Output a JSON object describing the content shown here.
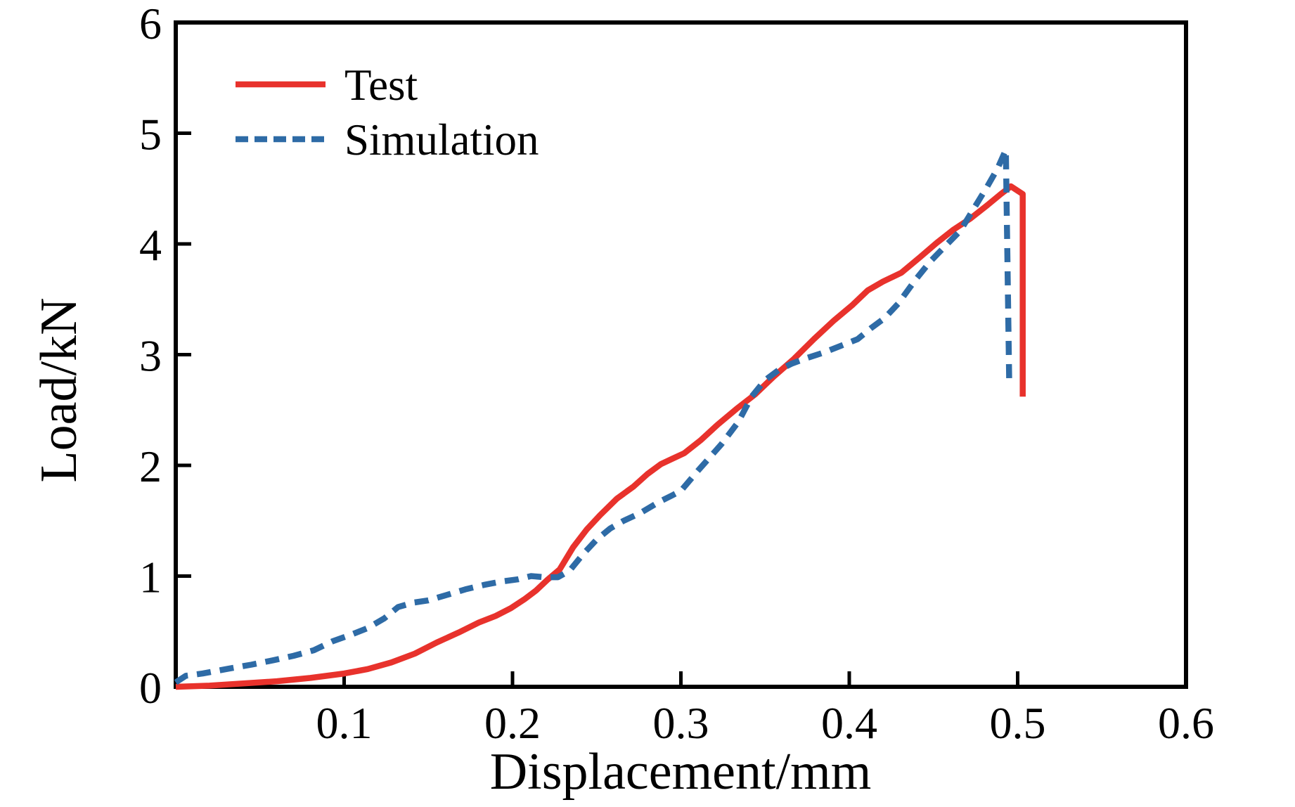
{
  "chart_data": {
    "type": "line",
    "title": "",
    "xlabel": "Displacement/mm",
    "ylabel": "Load/kN",
    "xlim": [
      0,
      0.6
    ],
    "ylim": [
      0,
      6
    ],
    "grid": false,
    "background_color": "#ffffff",
    "axis_color": "#000000",
    "xticks": {
      "values": [
        0.1,
        0.2,
        0.3,
        0.4,
        0.5,
        0.6
      ],
      "labels": [
        "0.1",
        "0.2",
        "0.3",
        "0.4",
        "0.5",
        "0.6"
      ]
    },
    "yticks": {
      "values": [
        0,
        1,
        2,
        3,
        4,
        5,
        6
      ],
      "labels": [
        "0",
        "1",
        "2",
        "3",
        "4",
        "5",
        "6"
      ]
    },
    "legend": {
      "position": "upper-left-inside"
    },
    "series": [
      {
        "name": "Test",
        "color": "#e8322c",
        "line_style": "solid",
        "points": [
          [
            0.0,
            0.0
          ],
          [
            0.02,
            0.01
          ],
          [
            0.04,
            0.03
          ],
          [
            0.06,
            0.05
          ],
          [
            0.08,
            0.08
          ],
          [
            0.1,
            0.12
          ],
          [
            0.114,
            0.16
          ],
          [
            0.128,
            0.22
          ],
          [
            0.142,
            0.3
          ],
          [
            0.155,
            0.4
          ],
          [
            0.168,
            0.49
          ],
          [
            0.18,
            0.58
          ],
          [
            0.19,
            0.64
          ],
          [
            0.199,
            0.71
          ],
          [
            0.207,
            0.79
          ],
          [
            0.214,
            0.87
          ],
          [
            0.221,
            0.97
          ],
          [
            0.228,
            1.06
          ],
          [
            0.236,
            1.26
          ],
          [
            0.244,
            1.42
          ],
          [
            0.252,
            1.55
          ],
          [
            0.262,
            1.7
          ],
          [
            0.272,
            1.81
          ],
          [
            0.28,
            1.92
          ],
          [
            0.288,
            2.01
          ],
          [
            0.295,
            2.06
          ],
          [
            0.302,
            2.11
          ],
          [
            0.312,
            2.23
          ],
          [
            0.322,
            2.37
          ],
          [
            0.333,
            2.51
          ],
          [
            0.344,
            2.64
          ],
          [
            0.355,
            2.8
          ],
          [
            0.367,
            2.96
          ],
          [
            0.379,
            3.14
          ],
          [
            0.391,
            3.31
          ],
          [
            0.402,
            3.45
          ],
          [
            0.411,
            3.58
          ],
          [
            0.42,
            3.66
          ],
          [
            0.431,
            3.74
          ],
          [
            0.442,
            3.88
          ],
          [
            0.452,
            4.01
          ],
          [
            0.462,
            4.13
          ],
          [
            0.472,
            4.23
          ],
          [
            0.482,
            4.35
          ],
          [
            0.49,
            4.45
          ],
          [
            0.496,
            4.52
          ],
          [
            0.503,
            4.45
          ],
          [
            0.503,
            2.62
          ]
        ]
      },
      {
        "name": "Simulation",
        "color": "#2e6ba6",
        "line_style": "dashed",
        "points": [
          [
            0.0,
            0.04
          ],
          [
            0.006,
            0.1
          ],
          [
            0.016,
            0.12
          ],
          [
            0.03,
            0.16
          ],
          [
            0.045,
            0.2
          ],
          [
            0.058,
            0.24
          ],
          [
            0.07,
            0.28
          ],
          [
            0.082,
            0.33
          ],
          [
            0.093,
            0.41
          ],
          [
            0.104,
            0.47
          ],
          [
            0.114,
            0.53
          ],
          [
            0.124,
            0.62
          ],
          [
            0.132,
            0.72
          ],
          [
            0.141,
            0.76
          ],
          [
            0.15,
            0.78
          ],
          [
            0.161,
            0.83
          ],
          [
            0.172,
            0.88
          ],
          [
            0.183,
            0.92
          ],
          [
            0.193,
            0.95
          ],
          [
            0.203,
            0.97
          ],
          [
            0.211,
            1.0
          ],
          [
            0.219,
            0.99
          ],
          [
            0.227,
            0.99
          ],
          [
            0.234,
            1.05
          ],
          [
            0.242,
            1.2
          ],
          [
            0.25,
            1.33
          ],
          [
            0.258,
            1.43
          ],
          [
            0.266,
            1.5
          ],
          [
            0.276,
            1.57
          ],
          [
            0.287,
            1.67
          ],
          [
            0.295,
            1.73
          ],
          [
            0.3,
            1.77
          ],
          [
            0.31,
            1.95
          ],
          [
            0.324,
            2.19
          ],
          [
            0.334,
            2.39
          ],
          [
            0.342,
            2.62
          ],
          [
            0.35,
            2.77
          ],
          [
            0.358,
            2.86
          ],
          [
            0.366,
            2.92
          ],
          [
            0.375,
            2.97
          ],
          [
            0.385,
            3.02
          ],
          [
            0.395,
            3.08
          ],
          [
            0.405,
            3.14
          ],
          [
            0.413,
            3.24
          ],
          [
            0.421,
            3.33
          ],
          [
            0.429,
            3.46
          ],
          [
            0.439,
            3.67
          ],
          [
            0.448,
            3.84
          ],
          [
            0.457,
            3.98
          ],
          [
            0.466,
            4.12
          ],
          [
            0.474,
            4.32
          ],
          [
            0.482,
            4.52
          ],
          [
            0.488,
            4.68
          ],
          [
            0.493,
            4.85
          ],
          [
            0.495,
            2.75
          ]
        ]
      }
    ]
  }
}
